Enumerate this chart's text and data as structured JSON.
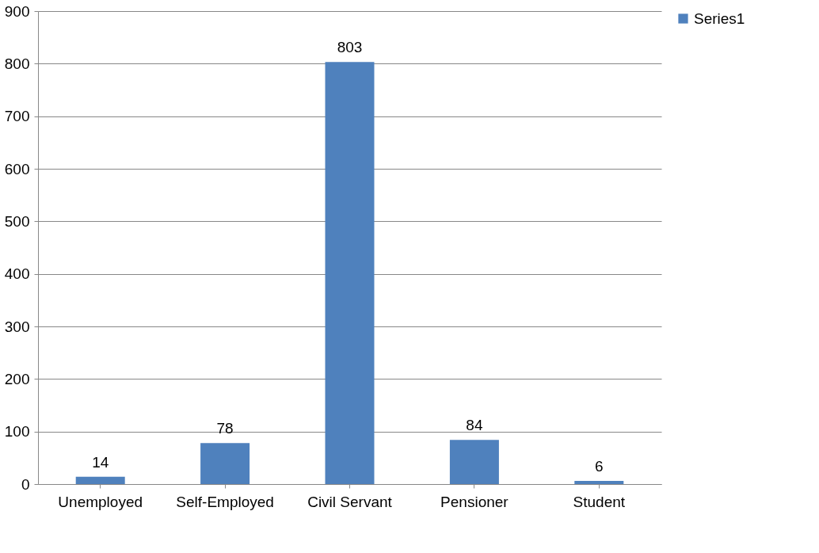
{
  "chart_data": {
    "type": "bar",
    "categories": [
      "Unemployed",
      "Self-Employed",
      "Civil Servant",
      "Pensioner",
      "Student"
    ],
    "series": [
      {
        "name": "Series1",
        "color": "#4f81bd",
        "values": [
          14,
          78,
          803,
          84,
          6
        ]
      }
    ],
    "ylim": [
      0,
      900
    ],
    "yticks": [
      0,
      100,
      200,
      300,
      400,
      500,
      600,
      700,
      800,
      900
    ],
    "grid": "y",
    "legend": "right",
    "data_labels": true
  }
}
